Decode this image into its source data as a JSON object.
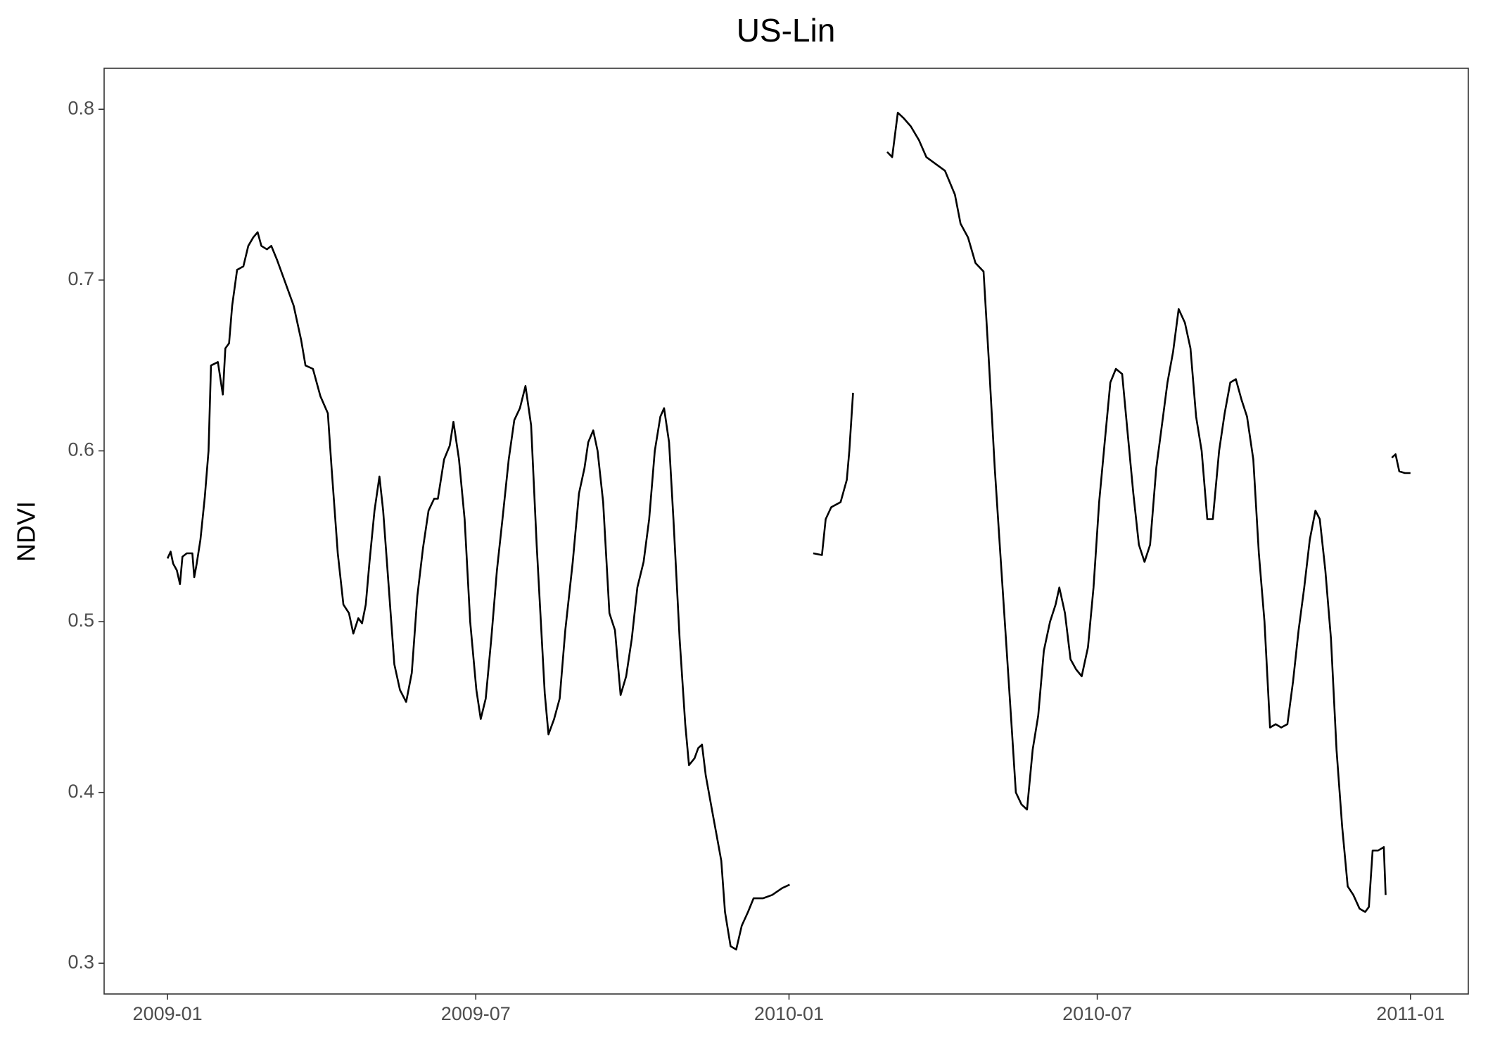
{
  "chart_data": {
    "type": "line",
    "title": "US-Lin",
    "y_label": "NDVI",
    "x": [
      2009.0,
      2009.005,
      2009.009,
      2009.015,
      2009.02,
      2009.024,
      2009.031,
      2009.04,
      2009.043,
      2009.047,
      2009.053,
      2009.06,
      2009.066,
      2009.07,
      2009.081,
      2009.089,
      2009.093,
      2009.099,
      2009.104,
      2009.112,
      2009.122,
      2009.13,
      2009.138,
      2009.145,
      2009.151,
      2009.16,
      2009.167,
      2009.176,
      2009.188,
      2009.203,
      2009.215,
      2009.222,
      2009.234,
      2009.246,
      2009.258,
      2009.264,
      2009.274,
      2009.283,
      2009.292,
      2009.299,
      2009.307,
      2009.313,
      2009.319,
      2009.325,
      2009.333,
      2009.341,
      2009.347,
      2009.356,
      2009.365,
      2009.374,
      2009.384,
      2009.393,
      2009.402,
      2009.411,
      2009.42,
      2009.429,
      2009.435,
      2009.445,
      2009.454,
      2009.46,
      2009.469,
      2009.478,
      2009.487,
      2009.497,
      2009.504,
      2009.512,
      2009.521,
      2009.53,
      2009.539,
      2009.549,
      2009.558,
      2009.567,
      2009.576,
      2009.585,
      2009.594,
      2009.607,
      2009.613,
      2009.622,
      2009.631,
      2009.64,
      2009.652,
      2009.662,
      2009.671,
      2009.677,
      2009.685,
      2009.692,
      2009.701,
      2009.711,
      2009.72,
      2009.729,
      2009.738,
      2009.747,
      2009.756,
      2009.766,
      2009.775,
      2009.784,
      2009.793,
      2009.799,
      2009.807,
      2009.814,
      2009.824,
      2009.833,
      2009.839,
      2009.848,
      2009.854,
      2009.86,
      2009.866,
      2009.876,
      2009.885,
      2009.891,
      2009.897,
      2009.906,
      2009.915,
      2009.924,
      2009.934,
      2009.943,
      2009.958,
      2009.973,
      2009.989,
      2010.001,
      2010.02,
      2010.039,
      2010.053,
      2010.059,
      2010.068,
      2010.083,
      2010.093,
      2010.097,
      2010.103,
      2010.13,
      2010.158,
      2010.166,
      2010.175,
      2010.184,
      2010.196,
      2010.209,
      2010.221,
      2010.236,
      2010.251,
      2010.267,
      2010.276,
      2010.288,
      2010.3,
      2010.313,
      2010.322,
      2010.331,
      2010.34,
      2010.349,
      2010.358,
      2010.365,
      2010.374,
      2010.383,
      2010.392,
      2010.401,
      2010.41,
      2010.42,
      2010.429,
      2010.435,
      2010.444,
      2010.453,
      2010.462,
      2010.471,
      2010.481,
      2010.49,
      2010.499,
      2010.508,
      2010.517,
      2010.526,
      2010.536,
      2010.545,
      2010.554,
      2010.563,
      2010.572,
      2010.581,
      2010.591,
      2010.6,
      2010.609,
      2010.618,
      2010.627,
      2010.637,
      2010.646,
      2010.655,
      2010.664,
      2010.673,
      2010.682,
      2010.692,
      2010.701,
      2010.71,
      2010.719,
      2010.728,
      2010.737,
      2010.747,
      2010.756,
      2010.765,
      2010.774,
      2010.783,
      2010.792,
      2010.802,
      2010.811,
      2010.82,
      2010.829,
      2010.838,
      2010.847,
      2010.854,
      2010.863,
      2010.872,
      2010.881,
      2010.89,
      2010.899,
      2010.908,
      2010.918,
      2010.927,
      2010.933,
      2010.939,
      2010.948,
      2010.957,
      2010.96,
      2010.965,
      2010.97,
      2010.976,
      2010.982,
      2010.991,
      2011.0
    ],
    "series": [
      {
        "color": "#000000",
        "values": [
          0.537,
          0.541,
          0.534,
          0.53,
          0.522,
          0.538,
          0.54,
          0.54,
          0.526,
          0.534,
          0.548,
          0.573,
          0.6,
          0.65,
          0.652,
          0.633,
          0.66,
          0.663,
          0.685,
          0.706,
          0.708,
          0.72,
          0.725,
          0.728,
          0.72,
          0.718,
          0.72,
          0.712,
          0.7,
          0.685,
          0.665,
          0.65,
          0.648,
          0.632,
          0.622,
          0.59,
          0.54,
          0.51,
          0.505,
          0.493,
          0.502,
          0.499,
          0.51,
          0.535,
          0.565,
          0.585,
          0.565,
          0.52,
          0.475,
          0.46,
          0.453,
          0.47,
          0.515,
          0.543,
          0.565,
          0.572,
          0.572,
          0.595,
          0.603,
          0.617,
          0.595,
          0.56,
          0.5,
          0.46,
          0.443,
          0.455,
          0.49,
          0.53,
          0.56,
          0.595,
          0.618,
          0.625,
          0.638,
          0.615,
          0.545,
          0.458,
          0.434,
          0.443,
          0.455,
          0.495,
          0.535,
          0.575,
          0.59,
          0.605,
          0.612,
          0.6,
          0.57,
          0.505,
          0.495,
          0.457,
          0.468,
          0.49,
          0.52,
          0.535,
          0.56,
          0.6,
          0.62,
          0.625,
          0.605,
          0.56,
          0.49,
          0.44,
          0.416,
          0.42,
          0.426,
          0.428,
          0.41,
          0.39,
          0.372,
          0.36,
          0.33,
          0.31,
          0.308,
          0.322,
          0.33,
          0.338,
          0.338,
          0.34,
          0.344,
          0.346,
          null,
          0.54,
          0.539,
          0.56,
          0.567,
          0.57,
          0.583,
          0.6,
          0.634,
          null,
          0.775,
          0.772,
          0.798,
          0.795,
          0.79,
          0.782,
          0.772,
          0.768,
          0.764,
          0.75,
          0.733,
          0.725,
          0.71,
          0.705,
          0.65,
          0.59,
          0.54,
          0.49,
          0.44,
          0.4,
          0.393,
          0.39,
          0.425,
          0.445,
          0.483,
          0.5,
          0.51,
          0.52,
          0.505,
          0.478,
          0.472,
          0.468,
          0.485,
          0.52,
          0.57,
          0.605,
          0.64,
          0.648,
          0.645,
          0.61,
          0.575,
          0.545,
          0.535,
          0.545,
          0.59,
          0.615,
          0.64,
          0.658,
          0.683,
          0.675,
          0.66,
          0.62,
          0.6,
          0.56,
          0.56,
          0.6,
          0.622,
          0.64,
          0.642,
          0.63,
          0.62,
          0.595,
          0.54,
          0.5,
          0.438,
          0.44,
          0.438,
          0.44,
          0.465,
          0.495,
          0.52,
          0.548,
          0.565,
          0.56,
          0.53,
          0.49,
          0.425,
          0.38,
          0.345,
          0.34,
          0.332,
          0.33,
          0.333,
          0.366,
          0.366,
          0.368,
          0.34,
          null,
          0.596,
          0.598,
          0.588,
          0.587,
          0.587
        ]
      }
    ],
    "xlim": [
      2008.898,
      2011.093
    ],
    "xticks": [
      {
        "value": 2009.0,
        "label": "2009-01"
      },
      {
        "value": 2009.496,
        "label": "2009-07"
      },
      {
        "value": 2010.0,
        "label": "2010-01"
      },
      {
        "value": 2010.496,
        "label": "2010-07"
      },
      {
        "value": 2011.0,
        "label": "2011-01"
      }
    ],
    "ylim": [
      0.282,
      0.824
    ],
    "yticks": [
      0.3,
      0.4,
      0.5,
      0.6,
      0.7,
      0.8
    ],
    "grid": false
  }
}
